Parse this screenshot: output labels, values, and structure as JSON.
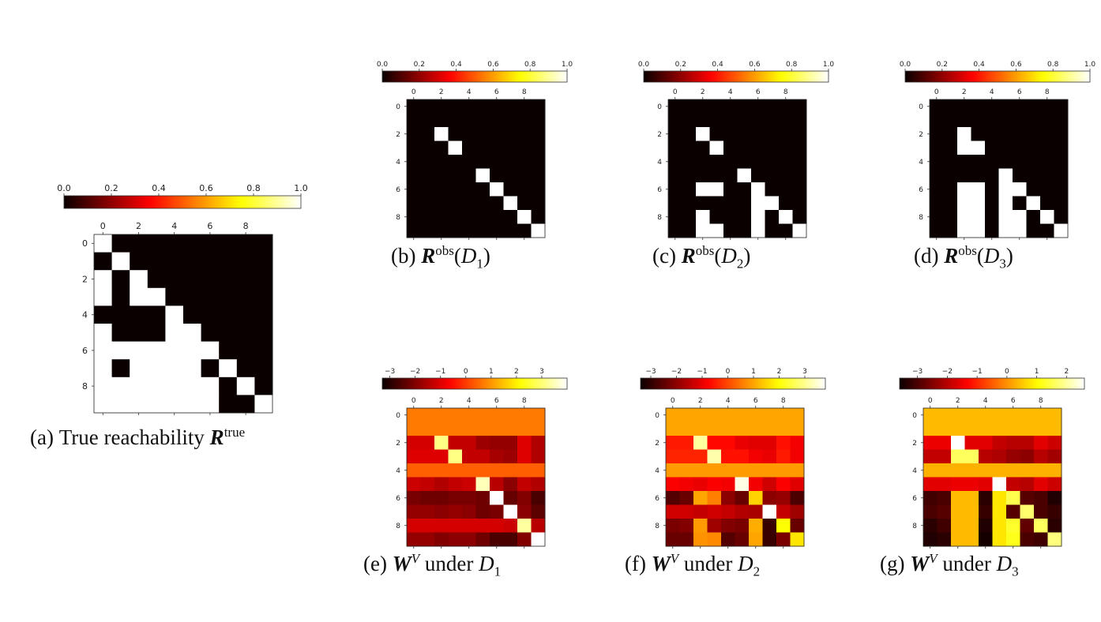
{
  "chart_data": [
    {
      "id": "a",
      "type": "heatmap",
      "caption": {
        "label": "(a)",
        "text": "True reachability",
        "symbol": "R",
        "sup": "true",
        "sub": "",
        "arg": "",
        "suffix": ""
      },
      "colorbar": {
        "cmap": "hot",
        "ticks": [
          "0.0",
          "0.2",
          "0.4",
          "0.6",
          "0.8",
          "1.0"
        ],
        "range": [
          0,
          1
        ]
      },
      "x_ticks": [
        "0",
        "2",
        "4",
        "6",
        "8"
      ],
      "y_ticks": [
        "0",
        "2",
        "4",
        "6",
        "8"
      ],
      "matrix": [
        [
          1,
          0,
          0,
          0,
          0,
          0,
          0,
          0,
          0,
          0
        ],
        [
          0,
          1,
          0,
          0,
          0,
          0,
          0,
          0,
          0,
          0
        ],
        [
          1,
          0,
          1,
          0,
          0,
          0,
          0,
          0,
          0,
          0
        ],
        [
          1,
          0,
          1,
          1,
          0,
          0,
          0,
          0,
          0,
          0
        ],
        [
          0,
          0,
          0,
          0,
          1,
          0,
          0,
          0,
          0,
          0
        ],
        [
          1,
          0,
          0,
          0,
          1,
          1,
          0,
          0,
          0,
          0
        ],
        [
          1,
          1,
          1,
          1,
          1,
          1,
          1,
          0,
          0,
          0
        ],
        [
          1,
          0,
          1,
          1,
          1,
          1,
          0,
          1,
          0,
          0
        ],
        [
          1,
          1,
          1,
          1,
          1,
          1,
          1,
          0,
          1,
          0
        ],
        [
          1,
          1,
          1,
          1,
          1,
          1,
          1,
          0,
          0,
          1
        ]
      ]
    },
    {
      "id": "b",
      "type": "heatmap",
      "caption": {
        "label": "(b)",
        "text": "",
        "symbol": "R",
        "sup": "obs",
        "sub": "1",
        "arg": "D",
        "suffix": ""
      },
      "colorbar": {
        "cmap": "hot",
        "ticks": [
          "0.0",
          "0.2",
          "0.4",
          "0.6",
          "0.8",
          "1.0"
        ],
        "range": [
          0,
          1
        ]
      },
      "x_ticks": [
        "0",
        "2",
        "4",
        "6",
        "8"
      ],
      "y_ticks": [
        "0",
        "2",
        "4",
        "6",
        "8"
      ],
      "matrix": [
        [
          0,
          0,
          0,
          0,
          0,
          0,
          0,
          0,
          0,
          0
        ],
        [
          0,
          0,
          0,
          0,
          0,
          0,
          0,
          0,
          0,
          0
        ],
        [
          0,
          0,
          1,
          0,
          0,
          0,
          0,
          0,
          0,
          0
        ],
        [
          0,
          0,
          0,
          1,
          0,
          0,
          0,
          0,
          0,
          0
        ],
        [
          0,
          0,
          0,
          0,
          0,
          0,
          0,
          0,
          0,
          0
        ],
        [
          0,
          0,
          0,
          0,
          0,
          1,
          0,
          0,
          0,
          0
        ],
        [
          0,
          0,
          0,
          0,
          0,
          0,
          1,
          0,
          0,
          0
        ],
        [
          0,
          0,
          0,
          0,
          0,
          0,
          0,
          1,
          0,
          0
        ],
        [
          0,
          0,
          0,
          0,
          0,
          0,
          0,
          0,
          1,
          0
        ],
        [
          0,
          0,
          0,
          0,
          0,
          0,
          0,
          0,
          0,
          1
        ]
      ]
    },
    {
      "id": "c",
      "type": "heatmap",
      "caption": {
        "label": "(c)",
        "text": "",
        "symbol": "R",
        "sup": "obs",
        "sub": "2",
        "arg": "D",
        "suffix": ""
      },
      "colorbar": {
        "cmap": "hot",
        "ticks": [
          "0.0",
          "0.2",
          "0.4",
          "0.6",
          "0.8",
          "1.0"
        ],
        "range": [
          0,
          1
        ]
      },
      "x_ticks": [
        "0",
        "2",
        "4",
        "6",
        "8"
      ],
      "y_ticks": [
        "0",
        "2",
        "4",
        "6",
        "8"
      ],
      "matrix": [
        [
          0,
          0,
          0,
          0,
          0,
          0,
          0,
          0,
          0,
          0
        ],
        [
          0,
          0,
          0,
          0,
          0,
          0,
          0,
          0,
          0,
          0
        ],
        [
          0,
          0,
          1,
          0,
          0,
          0,
          0,
          0,
          0,
          0
        ],
        [
          0,
          0,
          0,
          1,
          0,
          0,
          0,
          0,
          0,
          0
        ],
        [
          0,
          0,
          0,
          0,
          0,
          0,
          0,
          0,
          0,
          0
        ],
        [
          0,
          0,
          0,
          0,
          0,
          1,
          0,
          0,
          0,
          0
        ],
        [
          0,
          0,
          1,
          1,
          0,
          0,
          1,
          0,
          0,
          0
        ],
        [
          0,
          0,
          0,
          0,
          0,
          0,
          1,
          1,
          0,
          0
        ],
        [
          0,
          0,
          1,
          0,
          0,
          0,
          1,
          0,
          1,
          0
        ],
        [
          0,
          0,
          1,
          1,
          0,
          0,
          1,
          0,
          0,
          1
        ]
      ]
    },
    {
      "id": "d",
      "type": "heatmap",
      "caption": {
        "label": "(d)",
        "text": "",
        "symbol": "R",
        "sup": "obs",
        "sub": "3",
        "arg": "D",
        "suffix": ""
      },
      "colorbar": {
        "cmap": "hot",
        "ticks": [
          "0.0",
          "0.2",
          "0.4",
          "0.6",
          "0.8",
          "1.0"
        ],
        "range": [
          0,
          1
        ]
      },
      "x_ticks": [
        "0",
        "2",
        "4",
        "6",
        "8"
      ],
      "y_ticks": [
        "0",
        "2",
        "4",
        "6",
        "8"
      ],
      "matrix": [
        [
          0,
          0,
          0,
          0,
          0,
          0,
          0,
          0,
          0,
          0
        ],
        [
          0,
          0,
          0,
          0,
          0,
          0,
          0,
          0,
          0,
          0
        ],
        [
          0,
          0,
          1,
          0,
          0,
          0,
          0,
          0,
          0,
          0
        ],
        [
          0,
          0,
          1,
          1,
          0,
          0,
          0,
          0,
          0,
          0
        ],
        [
          0,
          0,
          0,
          0,
          0,
          0,
          0,
          0,
          0,
          0
        ],
        [
          0,
          0,
          0,
          0,
          0,
          1,
          0,
          0,
          0,
          0
        ],
        [
          0,
          0,
          1,
          1,
          0,
          1,
          1,
          0,
          0,
          0
        ],
        [
          0,
          0,
          1,
          1,
          0,
          1,
          0,
          1,
          0,
          0
        ],
        [
          0,
          0,
          1,
          1,
          0,
          1,
          1,
          0,
          1,
          0
        ],
        [
          0,
          0,
          1,
          1,
          0,
          1,
          1,
          0,
          0,
          1
        ]
      ]
    },
    {
      "id": "e",
      "type": "heatmap",
      "caption": {
        "label": "(e)",
        "text": "",
        "symbol": "W",
        "sup": "V",
        "sub": "1",
        "arg": "",
        "suffix": "under"
      },
      "colorbar": {
        "cmap": "hot",
        "ticks": [
          "−3",
          "−2",
          "−1",
          "0",
          "1",
          "2",
          "3"
        ],
        "tick_values": [
          -3,
          -2,
          -1,
          0,
          1,
          2,
          3
        ],
        "range": [
          -3.3,
          4.0
        ]
      },
      "x_ticks": [
        "0",
        "2",
        "4",
        "6",
        "8"
      ],
      "y_ticks": [
        "0",
        "2",
        "4",
        "6",
        "8"
      ],
      "matrix": [
        [
          0.7,
          0.7,
          0.7,
          0.7,
          0.7,
          0.7,
          0.7,
          0.7,
          0.7,
          0.7
        ],
        [
          0.7,
          0.7,
          0.7,
          0.7,
          0.7,
          0.7,
          0.7,
          0.7,
          0.7,
          0.7
        ],
        [
          -1.1,
          -1.1,
          3.1,
          -1.3,
          -1.3,
          -1.7,
          -1.8,
          -1.8,
          -1.0,
          -1.5
        ],
        [
          -1.0,
          -1.0,
          -1.0,
          3.1,
          -1.3,
          -1.3,
          -1.6,
          -1.7,
          -1.0,
          -1.5
        ],
        [
          0.4,
          0.4,
          0.4,
          0.4,
          0.4,
          0.4,
          0.4,
          0.4,
          0.4,
          0.4
        ],
        [
          -1.2,
          -1.3,
          -1.5,
          -1.3,
          -1.2,
          3.5,
          -1.4,
          -1.9,
          -1.3,
          -1.5
        ],
        [
          -2.1,
          -2.2,
          -2.2,
          -2.1,
          -2.1,
          -2.2,
          4.0,
          -2.3,
          -2.0,
          -2.6
        ],
        [
          -1.8,
          -1.8,
          -1.9,
          -1.8,
          -1.9,
          -2.2,
          -2.1,
          4.0,
          -1.9,
          -2.4
        ],
        [
          -1.1,
          -1.1,
          -1.1,
          -1.1,
          -1.1,
          -1.1,
          -1.1,
          -1.2,
          3.3,
          -1.4
        ],
        [
          -1.8,
          -1.8,
          -2.0,
          -1.9,
          -1.9,
          -2.2,
          -2.6,
          -2.6,
          -2.0,
          4.0
        ]
      ]
    },
    {
      "id": "f",
      "type": "heatmap",
      "caption": {
        "label": "(f)",
        "text": "",
        "symbol": "W",
        "sup": "V",
        "sub": "2",
        "arg": "",
        "suffix": "under"
      },
      "colorbar": {
        "cmap": "hot",
        "ticks": [
          "−3",
          "−2",
          "−1",
          "0",
          "1",
          "2",
          "3"
        ],
        "tick_values": [
          -3,
          -2,
          -1,
          0,
          1,
          2,
          3
        ],
        "range": [
          -3.4,
          3.8
        ]
      },
      "x_ticks": [
        "0",
        "2",
        "4",
        "6",
        "8"
      ],
      "y_ticks": [
        "0",
        "2",
        "4",
        "6",
        "8"
      ],
      "matrix": [
        [
          1.0,
          1.0,
          1.0,
          1.0,
          1.0,
          1.0,
          1.0,
          1.0,
          1.0,
          1.0
        ],
        [
          1.0,
          1.0,
          1.0,
          1.0,
          1.0,
          1.0,
          1.0,
          1.0,
          1.0,
          1.0
        ],
        [
          -0.5,
          -0.5,
          3.1,
          -0.7,
          -0.7,
          -1.0,
          -1.1,
          -1.1,
          -0.6,
          -0.9
        ],
        [
          -0.4,
          -0.4,
          -0.4,
          3.2,
          -0.6,
          -0.6,
          -0.9,
          -1.0,
          -0.5,
          -0.9
        ],
        [
          0.9,
          0.9,
          0.9,
          0.9,
          0.9,
          0.9,
          0.9,
          0.9,
          0.9,
          0.9
        ],
        [
          -0.8,
          -0.9,
          -1.0,
          -0.8,
          -0.9,
          3.6,
          -0.9,
          -1.3,
          -0.8,
          -1.1
        ],
        [
          -2.6,
          -2.4,
          1.0,
          0.6,
          -2.0,
          -2.4,
          1.5,
          -2.0,
          -1.9,
          -2.7
        ],
        [
          -1.3,
          -1.3,
          -1.4,
          -1.3,
          -1.4,
          -1.6,
          -1.7,
          3.8,
          -1.4,
          -1.8
        ],
        [
          -2.2,
          -2.1,
          0.9,
          -1.8,
          -2.1,
          -2.2,
          1.1,
          -2.9,
          2.0,
          -2.4
        ],
        [
          -2.4,
          -2.4,
          0.8,
          0.7,
          -2.6,
          -2.4,
          1.0,
          -2.9,
          -2.2,
          1.7
        ]
      ]
    },
    {
      "id": "g",
      "type": "heatmap",
      "caption": {
        "label": "(g)",
        "text": "",
        "symbol": "W",
        "sup": "V",
        "sub": "3",
        "arg": "",
        "suffix": "under"
      },
      "colorbar": {
        "cmap": "hot",
        "ticks": [
          "−3",
          "−2",
          "−1",
          "0",
          "1",
          "2"
        ],
        "tick_values": [
          -3,
          -2,
          -1,
          0,
          1,
          2
        ],
        "range": [
          -3.6,
          2.6
        ]
      },
      "x_ticks": [
        "0",
        "2",
        "4",
        "6",
        "8"
      ],
      "y_ticks": [
        "0",
        "2",
        "4",
        "6",
        "8"
      ],
      "matrix": [
        [
          0.4,
          0.4,
          0.4,
          0.4,
          0.4,
          0.4,
          0.4,
          0.4,
          0.4,
          0.4
        ],
        [
          0.4,
          0.4,
          0.4,
          0.4,
          0.4,
          0.4,
          0.4,
          0.4,
          0.4,
          0.4
        ],
        [
          -1.5,
          -1.5,
          2.6,
          -1.6,
          -1.6,
          -1.9,
          -2.0,
          -2.0,
          -1.6,
          -1.8
        ],
        [
          -1.9,
          -1.9,
          1.6,
          1.6,
          -2.0,
          -2.1,
          -2.3,
          -2.4,
          -2.0,
          -2.2
        ],
        [
          0.3,
          0.3,
          0.3,
          0.3,
          0.3,
          0.3,
          0.3,
          0.3,
          0.3,
          0.3
        ],
        [
          -1.6,
          -1.6,
          -1.5,
          -1.5,
          -1.6,
          2.6,
          -1.9,
          -2.0,
          -1.6,
          -1.8
        ],
        [
          -3.1,
          -3.0,
          0.4,
          0.4,
          -3.3,
          0.8,
          1.5,
          -2.9,
          -3.0,
          -3.4
        ],
        [
          -3.0,
          -2.9,
          0.4,
          0.4,
          -3.2,
          0.8,
          -2.9,
          1.7,
          -3.0,
          -3.2
        ],
        [
          -3.3,
          -3.1,
          0.4,
          0.4,
          -3.4,
          0.8,
          1.3,
          -2.8,
          1.6,
          -3.3
        ],
        [
          -3.4,
          -3.3,
          0.4,
          0.4,
          -3.5,
          0.8,
          1.2,
          -3.0,
          -3.1,
          1.8
        ]
      ]
    }
  ]
}
